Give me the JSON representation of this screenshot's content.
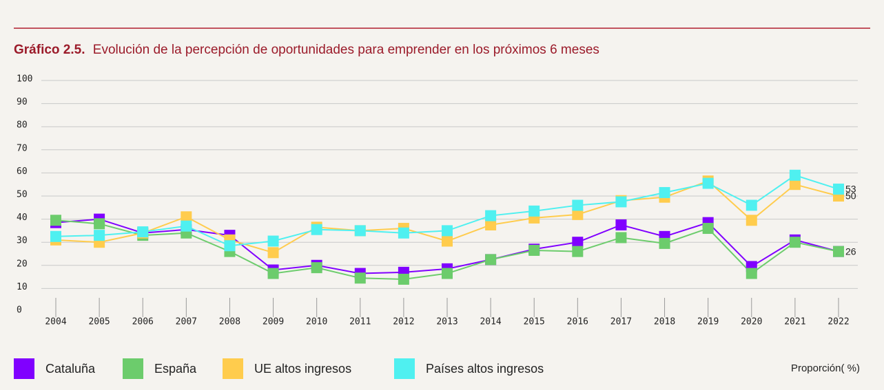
{
  "chart_data": {
    "type": "line",
    "title_label": "Gráfico 2.5.",
    "title": "Evolución de la percepción de oportunidades para emprender en los próximos 6 meses",
    "ylabel": "Proporción( %)",
    "categories": [
      "2004",
      "2005",
      "2006",
      "2007",
      "2008",
      "2009",
      "2010",
      "2011",
      "2012",
      "2013",
      "2014",
      "2015",
      "2016",
      "2017",
      "2018",
      "2019",
      "2020",
      "2021",
      "2022"
    ],
    "ylim": [
      0,
      100
    ],
    "yticks": [
      0,
      10,
      20,
      30,
      40,
      50,
      60,
      70,
      80,
      90,
      100
    ],
    "grid": true,
    "series": [
      {
        "name": "Cataluña",
        "color": "#8000ff",
        "label_last": false,
        "values": [
          38.5,
          40,
          34,
          35.5,
          33,
          18,
          20,
          16.5,
          17,
          18.5,
          22.5,
          27,
          30,
          37.5,
          32.5,
          38.5,
          19.5,
          31,
          26
        ]
      },
      {
        "name": "España",
        "color": "#6ccc6c",
        "label_last": true,
        "values": [
          39.5,
          38,
          33,
          34,
          26,
          16.5,
          19,
          14.5,
          14,
          16.5,
          22.5,
          26.5,
          26,
          32,
          29.5,
          36,
          16.5,
          30,
          26
        ]
      },
      {
        "name": "UE altos ingresos",
        "color": "#ffcc4d",
        "label_last": true,
        "values": [
          31,
          30,
          34,
          41,
          31,
          25.5,
          36.5,
          35,
          36,
          30.5,
          37.5,
          40.5,
          42,
          48,
          49.5,
          56.5,
          39.5,
          55,
          50
        ]
      },
      {
        "name": "Países altos ingresos",
        "color": "#4ff0f0",
        "label_last": true,
        "values": [
          32.5,
          33,
          34.5,
          37,
          28.5,
          30.5,
          35.5,
          35,
          34,
          35,
          41.5,
          43.5,
          46,
          47.5,
          51.5,
          55.5,
          46,
          59,
          53
        ]
      }
    ]
  }
}
